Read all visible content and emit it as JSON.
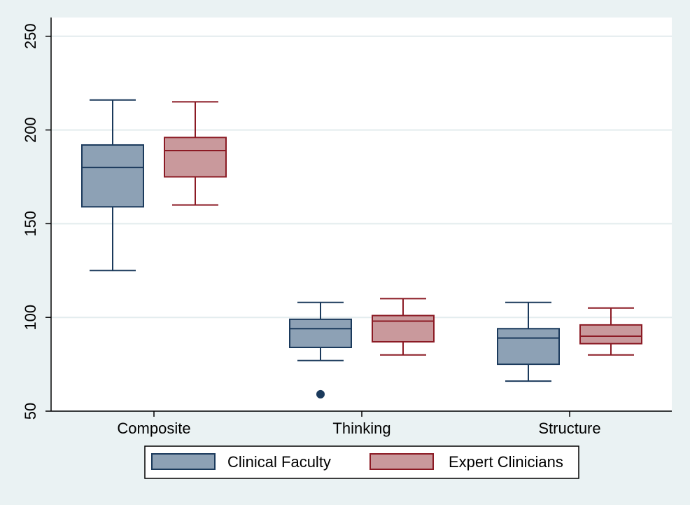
{
  "chart_data": {
    "type": "box",
    "title": "",
    "xlabel": "",
    "ylabel": "",
    "ylim": [
      50,
      260
    ],
    "yticks": [
      50,
      100,
      150,
      200,
      250
    ],
    "grid": true,
    "legend_position": "bottom",
    "categories": [
      "Composite",
      "Thinking",
      "Structure"
    ],
    "series": [
      {
        "name": "Clinical Faculty",
        "fill": "#8da1b5",
        "stroke": "#1b3a5c",
        "boxes": [
          {
            "min": 125,
            "q1": 159,
            "median": 180,
            "q3": 192,
            "max": 216,
            "outliers": []
          },
          {
            "min": 77,
            "q1": 84,
            "median": 94,
            "q3": 99,
            "max": 108,
            "outliers": [
              59
            ]
          },
          {
            "min": 66,
            "q1": 75,
            "median": 89,
            "q3": 94,
            "max": 108,
            "outliers": []
          }
        ]
      },
      {
        "name": "Expert Clinicians",
        "fill": "#c9999c",
        "stroke": "#8b1a24",
        "boxes": [
          {
            "min": 160,
            "q1": 175,
            "median": 189,
            "q3": 196,
            "max": 215,
            "outliers": []
          },
          {
            "min": 80,
            "q1": 87,
            "median": 98,
            "q3": 101,
            "max": 110,
            "outliers": []
          },
          {
            "min": 80,
            "q1": 86,
            "median": 90,
            "q3": 96,
            "max": 105,
            "outliers": []
          }
        ]
      }
    ],
    "colors": {
      "background": "#eaf2f3",
      "plot_background": "#ffffff",
      "grid": "#e3ecee",
      "axis": "#000000"
    }
  }
}
